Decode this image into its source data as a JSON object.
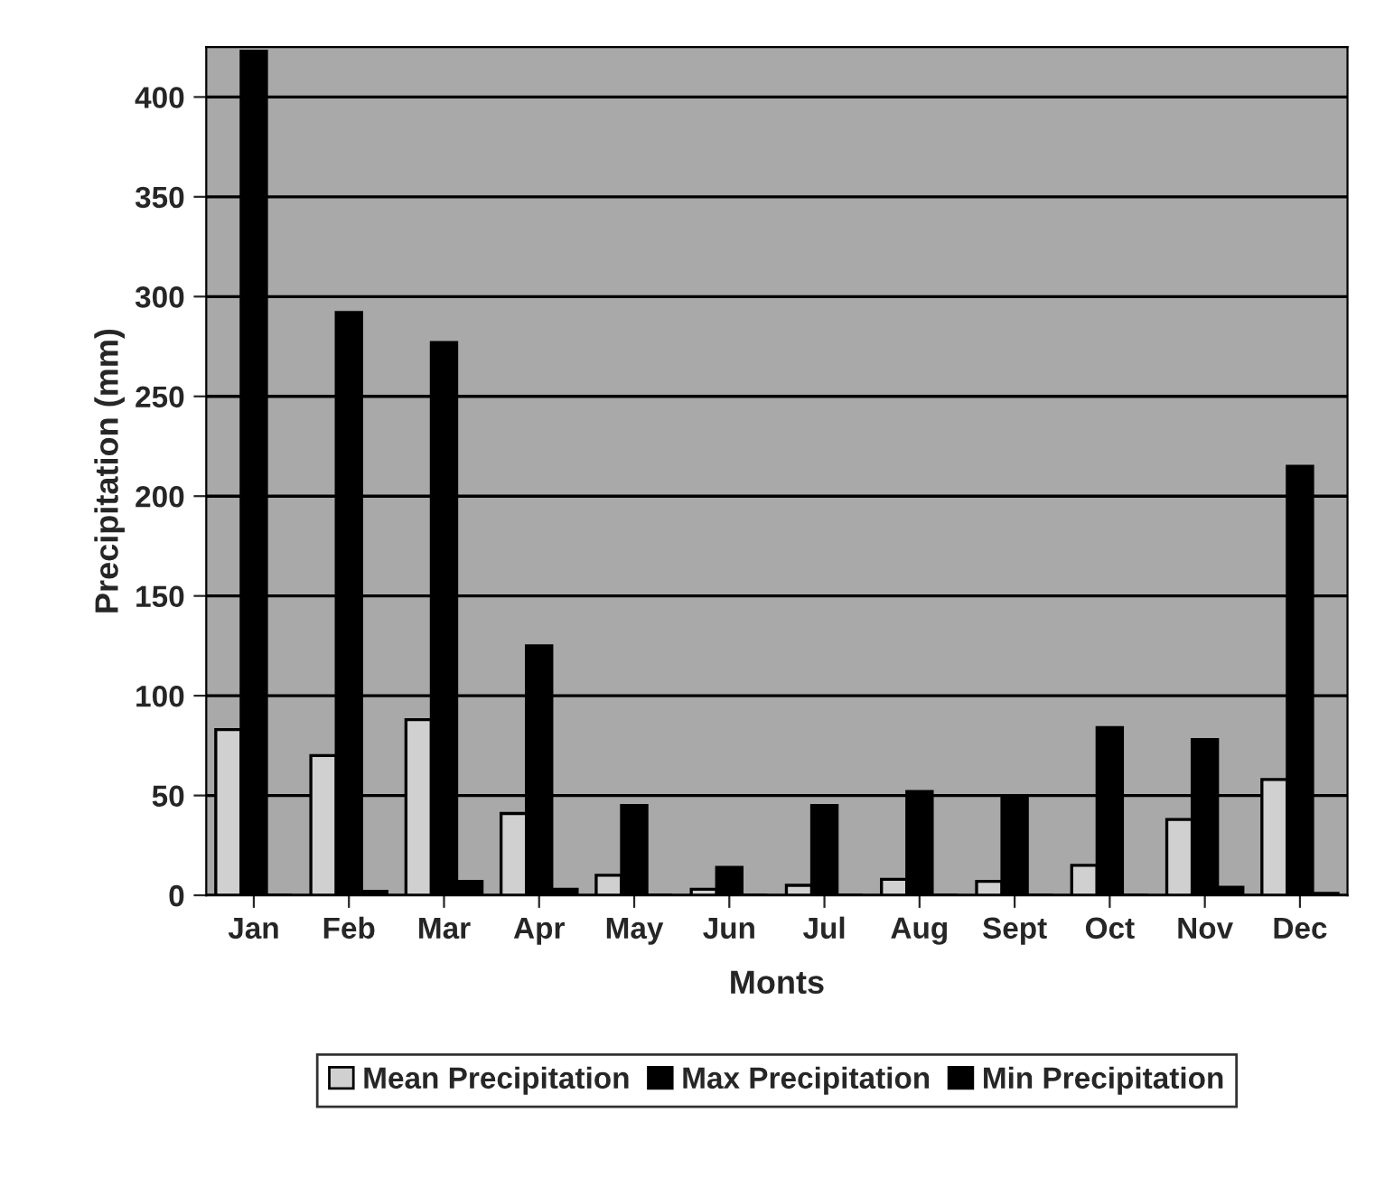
{
  "chart_data": {
    "type": "bar",
    "xlabel": "Monts",
    "ylabel": "Precipitation (mm)",
    "categories": [
      "Jan",
      "Feb",
      "Mar",
      "Apr",
      "May",
      "Jun",
      "Jul",
      "Aug",
      "Sept",
      "Oct",
      "Nov",
      "Dec"
    ],
    "series": [
      {
        "name": "Mean Precipitation",
        "color": "#d0d0d0",
        "values": [
          83,
          70,
          88,
          41,
          10,
          3,
          5,
          8,
          7,
          15,
          38,
          58
        ]
      },
      {
        "name": "Max Precipitation",
        "color": "#000000",
        "values": [
          423,
          292,
          277,
          125,
          45,
          14,
          45,
          52,
          50,
          84,
          78,
          215
        ]
      },
      {
        "name": "Min Precipitation",
        "color": "#000000",
        "values": [
          0,
          2,
          7,
          3,
          0,
          0,
          0,
          0,
          0,
          0,
          4,
          1
        ]
      }
    ],
    "ylim": [
      0,
      425
    ],
    "yticks": [
      0,
      50,
      100,
      150,
      200,
      250,
      300,
      350,
      400
    ],
    "grid": "y",
    "legend": "bottom"
  }
}
